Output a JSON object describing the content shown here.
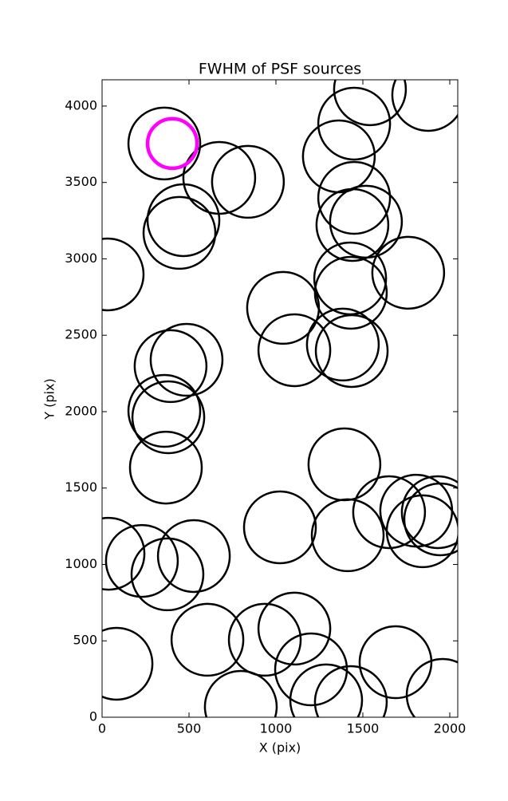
{
  "chart_data": {
    "type": "scatter",
    "title": "FWHM of PSF sources",
    "x_label": "X (pix)",
    "y_label": "Y (pix)",
    "xlim": [
      0,
      2046
    ],
    "ylim": [
      0,
      4172
    ],
    "xticks": [
      0,
      500,
      1000,
      1500,
      2000
    ],
    "yticks": [
      0,
      500,
      1000,
      1500,
      2000,
      2500,
      3000,
      3500,
      4000
    ],
    "series": [
      {
        "color": "#000000",
        "x": [
          358,
          674,
          839,
          468,
          445,
          32,
          1541,
          1876,
          1450,
          1362,
          1450,
          1518,
          1440,
          1761,
          1427,
          1431,
          1041,
          1106,
          1385,
          1436,
          486,
          394,
          358,
          381,
          367,
          1394,
          1651,
          1807,
          1931,
          1945,
          1844,
          1023,
          1413,
          37,
          229,
          528,
          376,
          83,
          606,
          936,
          1106,
          1202,
          798,
          1289,
          1431,
          1688,
          1959
        ],
        "values": [
          3755,
          3530,
          3504,
          3253,
          3170,
          2898,
          4110,
          4073,
          3885,
          3671,
          3399,
          3243,
          3222,
          2909,
          2872,
          2778,
          2679,
          2402,
          2439,
          2397,
          2339,
          2298,
          2005,
          1963,
          1634,
          1655,
          1342,
          1352,
          1342,
          1295,
          1217,
          1243,
          1191,
          1070,
          1023,
          1055,
          935,
          350,
          507,
          507,
          580,
          313,
          68,
          110,
          99,
          360,
          146
        ]
      },
      {
        "color": "#ff00ff",
        "x": [
          404
        ],
        "values": [
          3755
        ]
      }
    ]
  }
}
